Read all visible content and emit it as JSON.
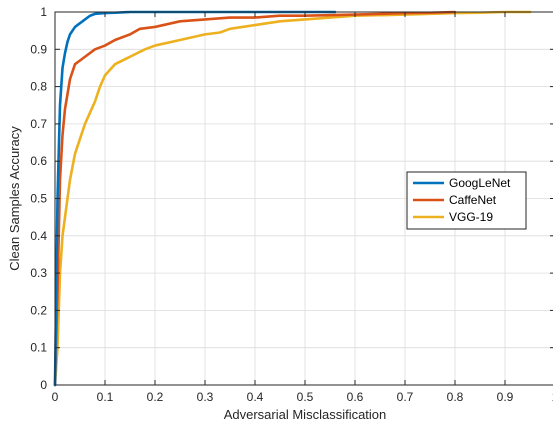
{
  "chart_data": {
    "type": "line",
    "title": "",
    "xlabel": "Adversarial Misclassification",
    "ylabel": "Clean Samples Accuracy",
    "xlim": [
      0,
      1
    ],
    "ylim": [
      0,
      1
    ],
    "xticks": [
      0,
      0.1,
      0.2,
      0.3,
      0.4,
      0.5,
      0.6,
      0.7,
      0.8,
      0.9,
      1
    ],
    "yticks": [
      0,
      0.1,
      0.2,
      0.3,
      0.4,
      0.5,
      0.6,
      0.7,
      0.8,
      0.9,
      1
    ],
    "xtick_labels": [
      "0",
      "0.1",
      "0.2",
      "0.3",
      "0.4",
      "0.5",
      "0.6",
      "0.7",
      "0.8",
      "0.9",
      "1"
    ],
    "ytick_labels": [
      "0",
      "0.1",
      "0.2",
      "0.3",
      "0.4",
      "0.5",
      "0.6",
      "0.7",
      "0.8",
      "0.9",
      "1"
    ],
    "grid": true,
    "legend_position": "center-right",
    "series": [
      {
        "name": "GoogLeNet",
        "color": "#0072BD",
        "x": [
          0,
          0.005,
          0.01,
          0.015,
          0.02,
          0.025,
          0.03,
          0.04,
          0.05,
          0.06,
          0.07,
          0.08,
          0.1,
          0.12,
          0.15,
          0.2,
          0.3,
          0.4,
          0.5,
          0.56
        ],
        "y": [
          0.0,
          0.5,
          0.75,
          0.85,
          0.89,
          0.92,
          0.94,
          0.96,
          0.97,
          0.98,
          0.99,
          0.995,
          0.997,
          0.998,
          1.0,
          1.0,
          1.0,
          1.0,
          1.0,
          1.0
        ]
      },
      {
        "name": "CaffeNet",
        "color": "#D95319",
        "x": [
          0,
          0.005,
          0.01,
          0.015,
          0.02,
          0.03,
          0.04,
          0.05,
          0.06,
          0.08,
          0.1,
          0.12,
          0.15,
          0.17,
          0.2,
          0.25,
          0.3,
          0.35,
          0.4,
          0.45,
          0.5,
          0.6,
          0.65,
          0.7,
          0.75,
          0.8
        ],
        "y": [
          0.0,
          0.25,
          0.55,
          0.67,
          0.74,
          0.82,
          0.86,
          0.87,
          0.88,
          0.9,
          0.91,
          0.925,
          0.94,
          0.955,
          0.96,
          0.975,
          0.98,
          0.985,
          0.985,
          0.99,
          0.99,
          0.993,
          0.995,
          0.997,
          0.998,
          1.0
        ]
      },
      {
        "name": "VGG-19",
        "color": "#EDB120",
        "x": [
          0,
          0.005,
          0.01,
          0.015,
          0.02,
          0.025,
          0.03,
          0.04,
          0.05,
          0.06,
          0.07,
          0.08,
          0.09,
          0.1,
          0.12,
          0.15,
          0.18,
          0.2,
          0.25,
          0.3,
          0.33,
          0.35,
          0.4,
          0.45,
          0.5,
          0.55,
          0.6,
          0.7,
          0.75,
          0.8,
          0.85,
          0.9,
          0.95
        ],
        "y": [
          0.0,
          0.1,
          0.3,
          0.4,
          0.45,
          0.5,
          0.55,
          0.62,
          0.66,
          0.7,
          0.73,
          0.76,
          0.8,
          0.83,
          0.86,
          0.88,
          0.9,
          0.91,
          0.925,
          0.94,
          0.945,
          0.955,
          0.965,
          0.975,
          0.98,
          0.985,
          0.99,
          0.993,
          0.995,
          0.997,
          0.998,
          1.0,
          1.0
        ]
      }
    ]
  }
}
